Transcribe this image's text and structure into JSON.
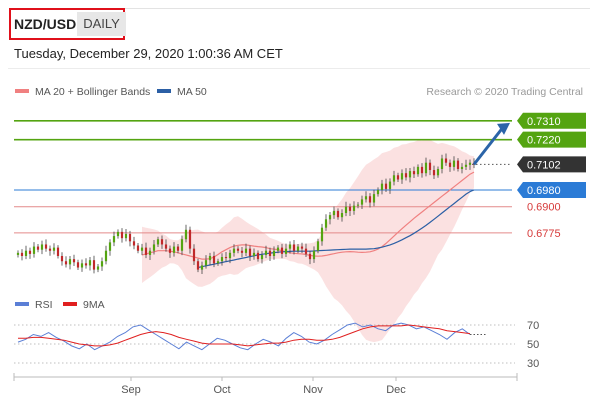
{
  "header": {
    "pair": "NZD/USD",
    "period": "DAILY",
    "datetime": "Tuesday, December 29, 2020 1:00:36 AM CET"
  },
  "legend": {
    "ma20": "MA 20 + Bollinger Bands",
    "ma50": "MA 50",
    "credit": "Research © 2020 Trading Central"
  },
  "rsi_legend": {
    "rsi": "RSI",
    "ma9": "9MA"
  },
  "colors": {
    "resistance": "#54a411",
    "support_blue": "#2b7bd6",
    "support_red": "#d63a3a",
    "current": "#333333",
    "candle_up": "#54a411",
    "candle_down": "#c0282a",
    "bollinger": "#f9d7d7",
    "ma20": "#f08080",
    "ma50": "#2b5fa5",
    "rsi": "#5b7fd6",
    "rsi_ma": "#e02020",
    "arrow": "#2b64a8"
  },
  "chart_data": [
    {
      "type": "candlestick",
      "title": "NZD/USD",
      "x_labels": [
        "Sep",
        "Oct",
        "Nov",
        "Dec"
      ],
      "ylim": [
        0.656,
        0.739
      ],
      "levels": [
        {
          "value": 0.731,
          "label": "0.7310",
          "kind": "resistance"
        },
        {
          "value": 0.722,
          "label": "0.7220",
          "kind": "resistance"
        },
        {
          "value": 0.7102,
          "label": "0.7102",
          "kind": "current"
        },
        {
          "value": 0.698,
          "label": "0.6980",
          "kind": "support_blue"
        },
        {
          "value": 0.69,
          "label": "0.6900",
          "kind": "support_red"
        },
        {
          "value": 0.6775,
          "label": "0.6775",
          "kind": "support_red"
        }
      ],
      "closes": [
        0.668,
        0.6665,
        0.669,
        0.6675,
        0.671,
        0.6695,
        0.672,
        0.67,
        0.669,
        0.6705,
        0.6665,
        0.664,
        0.6625,
        0.665,
        0.6635,
        0.661,
        0.663,
        0.662,
        0.6645,
        0.66,
        0.6615,
        0.664,
        0.669,
        0.673,
        0.676,
        0.678,
        0.675,
        0.677,
        0.6735,
        0.6715,
        0.669,
        0.6705,
        0.667,
        0.669,
        0.672,
        0.6745,
        0.672,
        0.67,
        0.668,
        0.671,
        0.669,
        0.6745,
        0.679,
        0.67,
        0.664,
        0.66,
        0.662,
        0.6645,
        0.6665,
        0.663,
        0.664,
        0.666,
        0.6655,
        0.668,
        0.67,
        0.669,
        0.668,
        0.67,
        0.6665,
        0.668,
        0.665,
        0.667,
        0.669,
        0.6665,
        0.669,
        0.6705,
        0.6675,
        0.67,
        0.672,
        0.669,
        0.671,
        0.67,
        0.6675,
        0.665,
        0.669,
        0.6735,
        0.68,
        0.684,
        0.686,
        0.688,
        0.685,
        0.687,
        0.69,
        0.688,
        0.6905,
        0.691,
        0.6935,
        0.695,
        0.692,
        0.696,
        0.698,
        0.701,
        0.6985,
        0.702,
        0.705,
        0.703,
        0.706,
        0.704,
        0.707,
        0.7055,
        0.709,
        0.706,
        0.711,
        0.7075,
        0.705,
        0.708,
        0.713,
        0.711,
        0.709,
        0.712,
        0.708,
        0.709,
        0.71,
        0.711,
        0.7102
      ],
      "ma20": [
        0.667,
        0.6675,
        0.668,
        0.6685,
        0.669,
        0.669,
        0.669,
        0.6688,
        0.6685,
        0.668,
        0.6675,
        0.667,
        0.6665,
        0.666,
        0.6655,
        0.665,
        0.665,
        0.6652,
        0.666,
        0.6672,
        0.6685,
        0.6695,
        0.6705,
        0.6712,
        0.6716,
        0.6718,
        0.6718,
        0.6715,
        0.6712,
        0.671,
        0.6708,
        0.6705,
        0.67,
        0.6698,
        0.6695,
        0.669,
        0.6685,
        0.668,
        0.6678,
        0.6676,
        0.6675,
        0.6672,
        0.6668,
        0.6665,
        0.6664,
        0.6665,
        0.6668,
        0.6672,
        0.6676,
        0.668,
        0.6683,
        0.6685,
        0.6686,
        0.6685,
        0.6683,
        0.6682,
        0.6683,
        0.6685,
        0.669,
        0.6698,
        0.671,
        0.6725,
        0.6742,
        0.676,
        0.6778,
        0.6795,
        0.6812,
        0.6828,
        0.6845,
        0.686,
        0.6875,
        0.689,
        0.6905,
        0.692,
        0.6935,
        0.695,
        0.6965,
        0.698,
        0.6995,
        0.701,
        0.7025,
        0.704,
        0.7055,
        0.7065
      ],
      "ma50": [
        0.661,
        0.6614,
        0.6618,
        0.6622,
        0.6626,
        0.663,
        0.6634,
        0.6638,
        0.6642,
        0.6646,
        0.665,
        0.6654,
        0.6658,
        0.6662,
        0.6666,
        0.667,
        0.6673,
        0.6676,
        0.6679,
        0.6681,
        0.6683,
        0.6685,
        0.6686,
        0.6687,
        0.6688,
        0.6688,
        0.6688,
        0.6688,
        0.6688,
        0.6689,
        0.669,
        0.6691,
        0.6692,
        0.6693,
        0.6694,
        0.6695,
        0.6696,
        0.6697,
        0.6698,
        0.6698,
        0.6698,
        0.6698,
        0.6698,
        0.6699,
        0.67,
        0.6703,
        0.6707,
        0.6712,
        0.6718,
        0.6725,
        0.6733,
        0.6742,
        0.6752,
        0.6762,
        0.6773,
        0.6785,
        0.6798,
        0.6811,
        0.6825,
        0.684,
        0.6855,
        0.687,
        0.6885,
        0.69,
        0.6915,
        0.693,
        0.6945,
        0.696,
        0.6972,
        0.698
      ]
    },
    {
      "type": "line",
      "title": "RSI",
      "ylim": [
        30,
        70
      ],
      "yticks": [
        "70",
        "50",
        "30"
      ],
      "series": [
        {
          "name": "RSI",
          "values": [
            52,
            55,
            60,
            58,
            62,
            57,
            53,
            48,
            45,
            50,
            44,
            48,
            52,
            58,
            62,
            68,
            70,
            65,
            60,
            55,
            50,
            45,
            52,
            48,
            44,
            50,
            56,
            54,
            50,
            46,
            44,
            50,
            55,
            52,
            48,
            56,
            62,
            58,
            52,
            50,
            54,
            60,
            65,
            70,
            72,
            68,
            70,
            66,
            64,
            70,
            72,
            70,
            66,
            68,
            64,
            60,
            55,
            62,
            66,
            60
          ],
          "ma": [
            56,
            56,
            57,
            57,
            56,
            55,
            54,
            52,
            50,
            49,
            48,
            48,
            49,
            51,
            54,
            57,
            60,
            62,
            63,
            62,
            60,
            57,
            55,
            53,
            51,
            50,
            50,
            50,
            50,
            49,
            48,
            49,
            50,
            51,
            51,
            52,
            54,
            55,
            55,
            54,
            54,
            55,
            57,
            60,
            63,
            66,
            68,
            69,
            69,
            69,
            69,
            70,
            69,
            68,
            67,
            66,
            64,
            63,
            62,
            61
          ]
        },
        {
          "name": "9MA",
          "values": []
        }
      ]
    }
  ]
}
